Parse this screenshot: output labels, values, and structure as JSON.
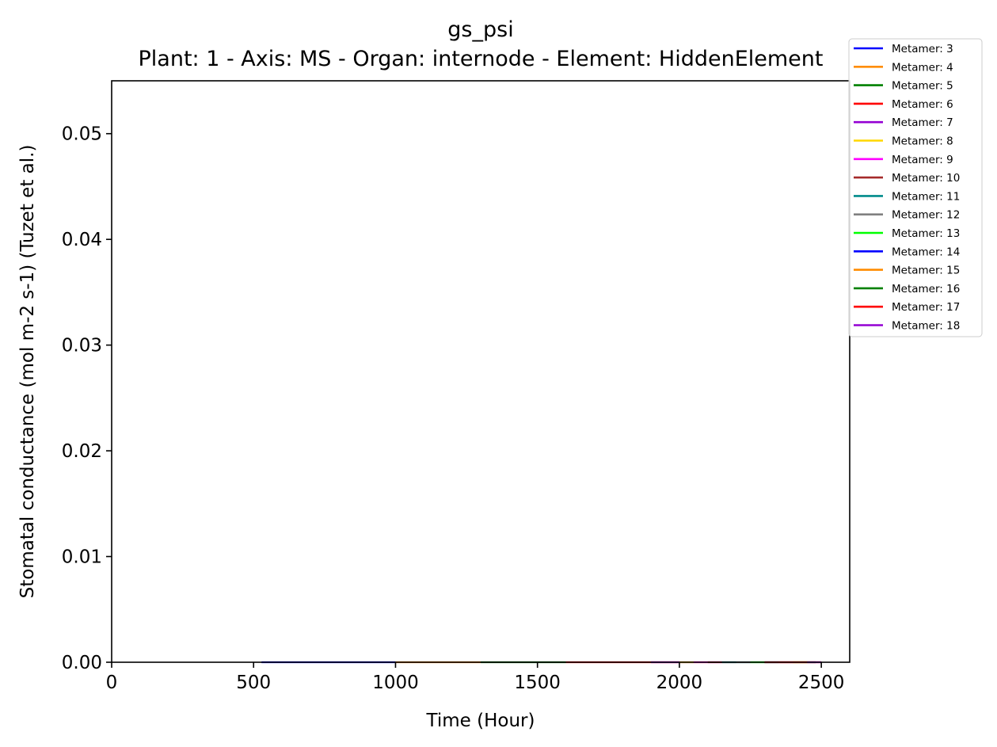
{
  "chart_data": {
    "type": "line",
    "title": "gs_psi",
    "subtitle": "Plant: 1 - Axis: MS - Organ: internode - Element: HiddenElement",
    "xlabel": "Time (Hour)",
    "ylabel": "Stomatal conductance (mol m-2 s-1) (Tuzet et al.)",
    "xlim": [
      0,
      2600
    ],
    "ylim": [
      0,
      0.055
    ],
    "xticks": [
      0,
      500,
      1000,
      1500,
      2000,
      2500
    ],
    "xtick_labels": [
      "0",
      "500",
      "1000",
      "1500",
      "2000",
      "2500"
    ],
    "yticks": [
      0,
      0.01,
      0.02,
      0.03,
      0.04,
      0.05
    ],
    "ytick_labels": [
      "0.00",
      "0.01",
      "0.02",
      "0.03",
      "0.04",
      "0.05"
    ],
    "grid": false,
    "legend_position": "upper-right, outside plot area",
    "series": [
      {
        "name": "Metamer: 3",
        "color": "#0000ff",
        "x": [
          528,
          1000
        ],
        "y": [
          0,
          0
        ]
      },
      {
        "name": "Metamer: 4",
        "color": "#ff8c00",
        "x": [
          1000,
          1300
        ],
        "y": [
          0,
          0
        ]
      },
      {
        "name": "Metamer: 5",
        "color": "#008000",
        "x": [
          1300,
          1600
        ],
        "y": [
          0,
          0
        ]
      },
      {
        "name": "Metamer: 6",
        "color": "#ff0000",
        "x": [
          1600,
          2000
        ],
        "y": [
          0,
          0
        ]
      },
      {
        "name": "Metamer: 7",
        "color": "#9400d3",
        "x": [
          1900,
          2050
        ],
        "y": [
          0,
          0
        ]
      },
      {
        "name": "Metamer: 8",
        "color": "#ffd700",
        "x": [
          2000,
          2100
        ],
        "y": [
          0,
          0
        ]
      },
      {
        "name": "Metamer: 9",
        "color": "#ff00ff",
        "x": [
          2050,
          2150
        ],
        "y": [
          0,
          0
        ]
      },
      {
        "name": "Metamer: 10",
        "color": "#a52a2a",
        "x": [
          2100,
          2200
        ],
        "y": [
          0,
          0
        ]
      },
      {
        "name": "Metamer: 11",
        "color": "#008b8b",
        "x": [
          2150,
          2250
        ],
        "y": [
          0,
          0
        ]
      },
      {
        "name": "Metamer: 12",
        "color": "#808080",
        "x": [
          2200,
          2300
        ],
        "y": [
          0,
          0
        ]
      },
      {
        "name": "Metamer: 13",
        "color": "#00ff00",
        "x": [
          2250,
          2350
        ],
        "y": [
          0,
          0
        ]
      },
      {
        "name": "Metamer: 14",
        "color": "#0000ff",
        "x": [
          2300,
          2400
        ],
        "y": [
          0,
          0
        ]
      },
      {
        "name": "Metamer: 15",
        "color": "#ff8c00",
        "x": [
          2350,
          2450
        ],
        "y": [
          0,
          0
        ]
      },
      {
        "name": "Metamer: 16",
        "color": "#008000",
        "x": [
          2400,
          2480
        ],
        "y": [
          0,
          0
        ]
      },
      {
        "name": "Metamer: 17",
        "color": "#ff0000",
        "x": [
          2300,
          2500
        ],
        "y": [
          0,
          0
        ]
      },
      {
        "name": "Metamer: 18",
        "color": "#9400d3",
        "x": [
          2450,
          2500
        ],
        "y": [
          0,
          0
        ]
      }
    ]
  }
}
